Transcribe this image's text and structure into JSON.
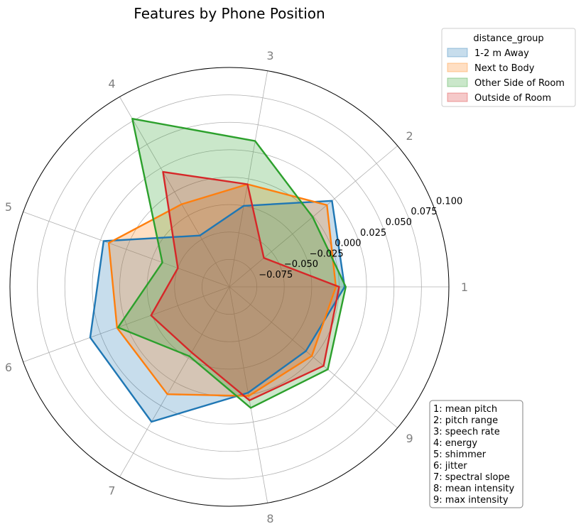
{
  "chart_data": {
    "type": "radar",
    "title": "Features by Phone Position",
    "categories": [
      "1",
      "2",
      "3",
      "4",
      "5",
      "6",
      "7",
      "8",
      "9"
    ],
    "radial_ticks": [
      "−0.075",
      "−0.050",
      "−0.025",
      "0.000",
      "0.025",
      "0.050",
      "0.075",
      "0.100"
    ],
    "radial_tick_values": [
      -0.075,
      -0.05,
      -0.025,
      0.0,
      0.025,
      0.05,
      0.075,
      0.1
    ],
    "rlim": [
      -0.1,
      0.1
    ],
    "grid": true,
    "legend": {
      "title": "distance_group",
      "position": "top-right"
    },
    "series": [
      {
        "name": "1-2 m Away",
        "color": "#1f77b4",
        "values": [
          0.005,
          0.022,
          -0.025,
          -0.046,
          0.022,
          0.035,
          0.042,
          -0.002,
          -0.009
        ]
      },
      {
        "name": "Next to Body",
        "color": "#ff7f0e",
        "values": [
          -0.003,
          0.016,
          -0.005,
          -0.013,
          0.017,
          0.009,
          0.013,
          0.001,
          -0.002
        ]
      },
      {
        "name": "Other Side of Room",
        "color": "#2ca02c",
        "values": [
          0.006,
          -0.001,
          0.035,
          0.077,
          -0.035,
          0.008,
          -0.027,
          0.012,
          0.017
        ]
      },
      {
        "name": "Outside of Room",
        "color": "#d62728",
        "values": [
          0.0,
          -0.059,
          -0.005,
          0.021,
          -0.05,
          -0.024,
          -0.031,
          0.005,
          0.012
        ]
      }
    ],
    "annotation_lines": [
      "1: mean pitch",
      "2: pitch range",
      "3: speech rate",
      "4: energy",
      "5: shimmer",
      "6: jitter",
      "7: spectral slope",
      "8: mean intensity",
      "9: max intensity"
    ]
  }
}
